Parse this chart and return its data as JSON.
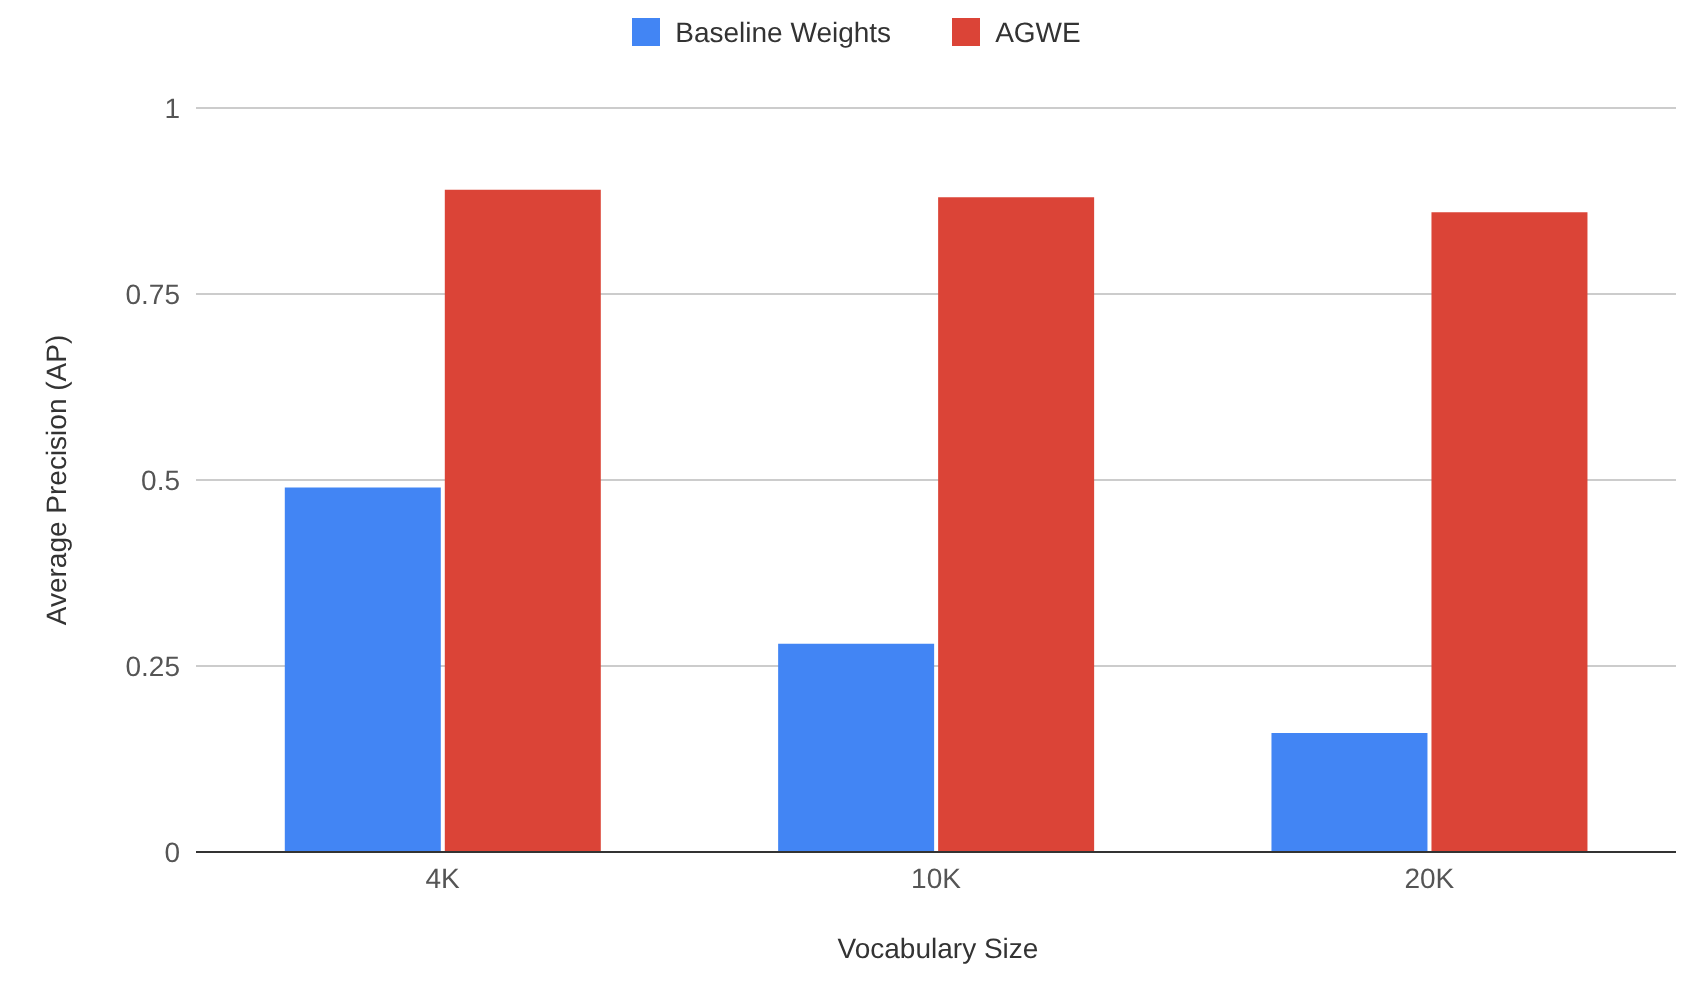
{
  "chart_data": {
    "type": "bar",
    "xlabel": "Vocabulary Size",
    "ylabel": "Average Precision (AP)",
    "categories": [
      "4K",
      "10K",
      "20K"
    ],
    "series": [
      {
        "name": "Baseline Weights",
        "color": "#4285f4",
        "values": [
          0.49,
          0.28,
          0.16
        ]
      },
      {
        "name": "AGWE",
        "color": "#db4437",
        "values": [
          0.89,
          0.88,
          0.86
        ]
      }
    ],
    "ylim": [
      0,
      1
    ],
    "yticks": [
      0,
      0.25,
      0.5,
      0.75,
      1
    ],
    "grid": "y",
    "legend": "top"
  }
}
